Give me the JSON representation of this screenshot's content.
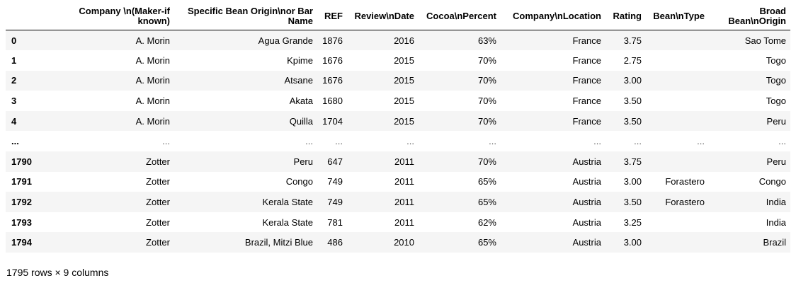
{
  "table": {
    "index_header": "",
    "columns": [
      "Company \\n(Maker-if known)",
      "Specific Bean Origin\\nor Bar Name",
      "REF",
      "Review\\nDate",
      "Cocoa\\nPercent",
      "Company\\nLocation",
      "Rating",
      "Bean\\nType",
      "Broad Bean\\nOrigin"
    ],
    "rows": [
      {
        "index": "0",
        "cells": [
          "A. Morin",
          "Agua Grande",
          "1876",
          "2016",
          "63%",
          "France",
          "3.75",
          "",
          "Sao Tome"
        ]
      },
      {
        "index": "1",
        "cells": [
          "A. Morin",
          "Kpime",
          "1676",
          "2015",
          "70%",
          "France",
          "2.75",
          "",
          "Togo"
        ]
      },
      {
        "index": "2",
        "cells": [
          "A. Morin",
          "Atsane",
          "1676",
          "2015",
          "70%",
          "France",
          "3.00",
          "",
          "Togo"
        ]
      },
      {
        "index": "3",
        "cells": [
          "A. Morin",
          "Akata",
          "1680",
          "2015",
          "70%",
          "France",
          "3.50",
          "",
          "Togo"
        ]
      },
      {
        "index": "4",
        "cells": [
          "A. Morin",
          "Quilla",
          "1704",
          "2015",
          "70%",
          "France",
          "3.50",
          "",
          "Peru"
        ]
      },
      {
        "index": "...",
        "cells": [
          "...",
          "...",
          "...",
          "...",
          "...",
          "...",
          "...",
          "...",
          "..."
        ]
      },
      {
        "index": "1790",
        "cells": [
          "Zotter",
          "Peru",
          "647",
          "2011",
          "70%",
          "Austria",
          "3.75",
          "",
          "Peru"
        ]
      },
      {
        "index": "1791",
        "cells": [
          "Zotter",
          "Congo",
          "749",
          "2011",
          "65%",
          "Austria",
          "3.00",
          "Forastero",
          "Congo"
        ]
      },
      {
        "index": "1792",
        "cells": [
          "Zotter",
          "Kerala State",
          "749",
          "2011",
          "65%",
          "Austria",
          "3.50",
          "Forastero",
          "India"
        ]
      },
      {
        "index": "1793",
        "cells": [
          "Zotter",
          "Kerala State",
          "781",
          "2011",
          "62%",
          "Austria",
          "3.25",
          "",
          "India"
        ]
      },
      {
        "index": "1794",
        "cells": [
          "Zotter",
          "Brazil, Mitzi Blue",
          "486",
          "2010",
          "65%",
          "Austria",
          "3.00",
          "",
          "Brazil"
        ]
      }
    ]
  },
  "footer": {
    "shape_text": "1795 rows × 9 columns"
  }
}
